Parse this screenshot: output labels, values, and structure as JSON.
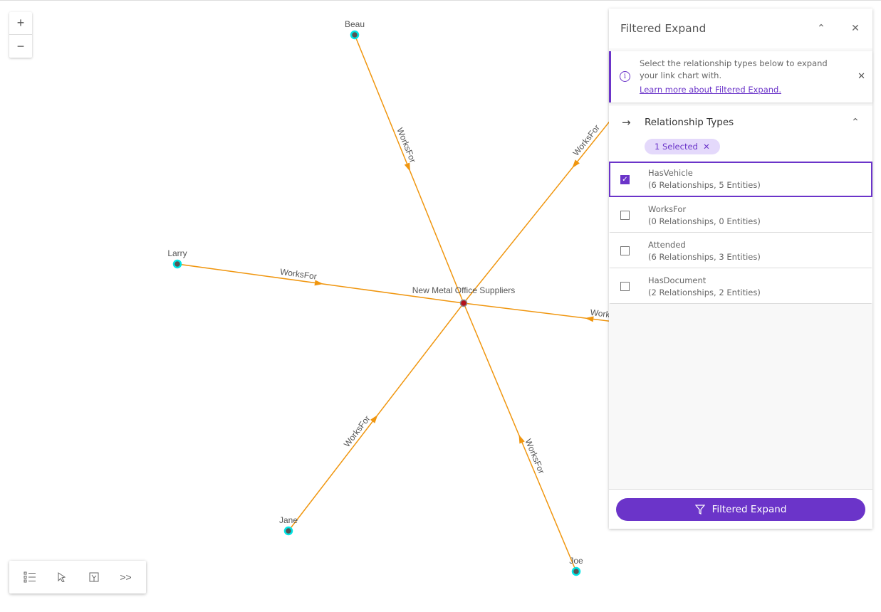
{
  "graph": {
    "center": {
      "label": "New Metal Office Suppliers",
      "color": "#b5121b"
    },
    "nodes": [
      {
        "id": "beau",
        "label": "Beau"
      },
      {
        "id": "larry",
        "label": "Larry"
      },
      {
        "id": "jane",
        "label": "Jane"
      },
      {
        "id": "joe",
        "label": "Joe"
      },
      {
        "id": "offscreen-upper",
        "label": ""
      },
      {
        "id": "offscreen-right",
        "label": ""
      }
    ],
    "edge_label": "WorksFor",
    "edge_color": "#f0960f",
    "node_color": "#00e5e5"
  },
  "zoom": {
    "in": "+",
    "out": "−"
  },
  "toolbar": [
    "list-icon",
    "select-icon",
    "layout-icon",
    "expand-icon"
  ],
  "panel": {
    "title": "Filtered Expand",
    "notice_text": "Select the relationship types below to expand your link chart with.",
    "notice_link": "Learn more about Filtered Expand.",
    "section_title": "Relationship Types",
    "chip": "1 Selected",
    "items": [
      {
        "name": "HasVehicle",
        "detail": "(6 Relationships, 5 Entities)",
        "checked": true
      },
      {
        "name": "WorksFor",
        "detail": "(0 Relationships, 0 Entities)",
        "checked": false
      },
      {
        "name": "Attended",
        "detail": "(6 Relationships, 3 Entities)",
        "checked": false
      },
      {
        "name": "HasDocument",
        "detail": "(2 Relationships, 2 Entities)",
        "checked": false
      }
    ],
    "button": "Filtered Expand",
    "accent": "#6b34c9"
  }
}
